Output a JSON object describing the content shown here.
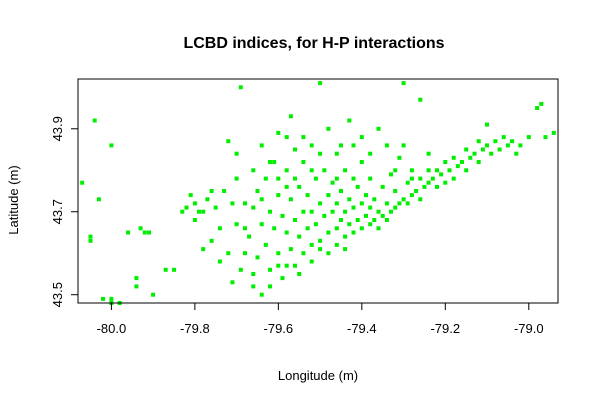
{
  "chart_data": {
    "type": "scatter",
    "title": "LCBD indices, for H-P interactions",
    "xlabel": "Longitude (m)",
    "ylabel": "Latitude (m)",
    "xlim": [
      -80.08,
      -78.93
    ],
    "ylim": [
      43.48,
      44.02
    ],
    "xticks": [
      -80.0,
      -79.8,
      -79.6,
      -79.4,
      -79.2,
      -79.0
    ],
    "xtick_labels": [
      "-80.0",
      "-79.8",
      "-79.6",
      "-79.4",
      "-79.2",
      "-79.0"
    ],
    "yticks": [
      43.5,
      43.7,
      43.9
    ],
    "ytick_labels": [
      "43.5",
      "43.7",
      "43.9"
    ],
    "grid": false,
    "legend": "none",
    "color": "#00ee00",
    "series": [
      {
        "values": [
          [
            -80.07,
            43.77
          ],
          [
            -80.05,
            43.64
          ],
          [
            -80.05,
            43.63
          ],
          [
            -80.04,
            43.92
          ],
          [
            -80.03,
            43.73
          ],
          [
            -80.02,
            43.49
          ],
          [
            -80.0,
            43.49
          ],
          [
            -80.0,
            43.48
          ],
          [
            -79.98,
            43.48
          ],
          [
            -80.0,
            43.86
          ],
          [
            -79.96,
            43.65
          ],
          [
            -79.94,
            43.54
          ],
          [
            -79.94,
            43.52
          ],
          [
            -79.93,
            43.66
          ],
          [
            -79.92,
            43.65
          ],
          [
            -79.91,
            43.65
          ],
          [
            -79.9,
            43.5
          ],
          [
            -79.87,
            43.56
          ],
          [
            -79.85,
            43.56
          ],
          [
            -79.83,
            43.7
          ],
          [
            -79.82,
            43.71
          ],
          [
            -79.81,
            43.74
          ],
          [
            -79.8,
            43.68
          ],
          [
            -79.8,
            43.72
          ],
          [
            -79.79,
            43.7
          ],
          [
            -79.78,
            43.61
          ],
          [
            -79.78,
            43.7
          ],
          [
            -79.77,
            43.73
          ],
          [
            -79.76,
            43.63
          ],
          [
            -79.76,
            43.75
          ],
          [
            -79.75,
            43.71
          ],
          [
            -79.74,
            43.58
          ],
          [
            -79.74,
            43.66
          ],
          [
            -79.73,
            43.75
          ],
          [
            -79.72,
            43.87
          ],
          [
            -79.71,
            43.72
          ],
          [
            -79.71,
            43.53
          ],
          [
            -79.7,
            43.67
          ],
          [
            -79.7,
            43.84
          ],
          [
            -79.69,
            43.56
          ],
          [
            -79.69,
            44.0
          ],
          [
            -79.68,
            43.6
          ],
          [
            -79.68,
            43.72
          ],
          [
            -79.67,
            43.64
          ],
          [
            -79.66,
            43.55
          ],
          [
            -79.66,
            43.71
          ],
          [
            -79.65,
            43.59
          ],
          [
            -79.65,
            43.75
          ],
          [
            -79.64,
            43.5
          ],
          [
            -79.64,
            43.67
          ],
          [
            -79.63,
            43.62
          ],
          [
            -79.63,
            43.78
          ],
          [
            -79.62,
            43.56
          ],
          [
            -79.62,
            43.7
          ],
          [
            -79.61,
            43.66
          ],
          [
            -79.61,
            43.82
          ],
          [
            -79.6,
            43.6
          ],
          [
            -79.6,
            43.74
          ],
          [
            -79.6,
            43.89
          ],
          [
            -79.59,
            43.54
          ],
          [
            -79.59,
            43.69
          ],
          [
            -79.58,
            43.65
          ],
          [
            -79.58,
            43.8
          ],
          [
            -79.57,
            43.61
          ],
          [
            -79.57,
            43.73
          ],
          [
            -79.57,
            43.93
          ],
          [
            -79.56,
            43.57
          ],
          [
            -79.56,
            43.68
          ],
          [
            -79.56,
            43.85
          ],
          [
            -79.55,
            43.64
          ],
          [
            -79.55,
            43.76
          ],
          [
            -79.54,
            43.6
          ],
          [
            -79.54,
            43.7
          ],
          [
            -79.54,
            43.82
          ],
          [
            -79.53,
            43.66
          ],
          [
            -79.53,
            43.74
          ],
          [
            -79.52,
            43.62
          ],
          [
            -79.52,
            43.7
          ],
          [
            -79.52,
            43.86
          ],
          [
            -79.51,
            43.67
          ],
          [
            -79.51,
            43.78
          ],
          [
            -79.5,
            43.63
          ],
          [
            -79.5,
            43.72
          ],
          [
            -79.5,
            44.01
          ],
          [
            -79.49,
            43.69
          ],
          [
            -79.49,
            43.8
          ],
          [
            -79.48,
            43.65
          ],
          [
            -79.48,
            43.74
          ],
          [
            -79.48,
            43.9
          ],
          [
            -79.47,
            43.7
          ],
          [
            -79.47,
            43.77
          ],
          [
            -79.46,
            43.66
          ],
          [
            -79.46,
            43.72
          ],
          [
            -79.46,
            43.84
          ],
          [
            -79.45,
            43.68
          ],
          [
            -79.45,
            43.75
          ],
          [
            -79.44,
            43.64
          ],
          [
            -79.44,
            43.7
          ],
          [
            -79.44,
            43.8
          ],
          [
            -79.43,
            43.67
          ],
          [
            -79.43,
            43.73
          ],
          [
            -79.42,
            43.65
          ],
          [
            -79.42,
            43.71
          ],
          [
            -79.42,
            43.86
          ],
          [
            -79.41,
            43.68
          ],
          [
            -79.41,
            43.76
          ],
          [
            -79.4,
            43.66
          ],
          [
            -79.4,
            43.72
          ],
          [
            -79.4,
            43.82
          ],
          [
            -79.39,
            43.69
          ],
          [
            -79.39,
            43.74
          ],
          [
            -79.38,
            43.67
          ],
          [
            -79.38,
            43.71
          ],
          [
            -79.38,
            43.78
          ],
          [
            -79.37,
            43.68
          ],
          [
            -79.37,
            43.73
          ],
          [
            -79.36,
            43.66
          ],
          [
            -79.36,
            43.7
          ],
          [
            -79.36,
            43.9
          ],
          [
            -79.35,
            43.69
          ],
          [
            -79.35,
            43.76
          ],
          [
            -79.34,
            43.68
          ],
          [
            -79.34,
            43.72
          ],
          [
            -79.33,
            43.7
          ],
          [
            -79.33,
            43.79
          ],
          [
            -79.32,
            43.71
          ],
          [
            -79.32,
            43.75
          ],
          [
            -79.31,
            43.72
          ],
          [
            -79.31,
            43.83
          ],
          [
            -79.3,
            43.73
          ],
          [
            -79.3,
            44.01
          ],
          [
            -79.29,
            43.72
          ],
          [
            -79.29,
            43.77
          ],
          [
            -79.28,
            43.74
          ],
          [
            -79.28,
            43.8
          ],
          [
            -79.27,
            43.75
          ],
          [
            -79.26,
            43.73
          ],
          [
            -79.26,
            43.78
          ],
          [
            -79.25,
            43.76
          ],
          [
            -79.24,
            43.77
          ],
          [
            -79.24,
            43.84
          ],
          [
            -79.23,
            43.78
          ],
          [
            -79.22,
            43.76
          ],
          [
            -79.22,
            43.8
          ],
          [
            -79.21,
            43.79
          ],
          [
            -79.2,
            43.77
          ],
          [
            -79.2,
            43.82
          ],
          [
            -79.19,
            43.8
          ],
          [
            -79.18,
            43.78
          ],
          [
            -79.18,
            43.83
          ],
          [
            -79.17,
            43.81
          ],
          [
            -79.16,
            43.82
          ],
          [
            -79.15,
            43.8
          ],
          [
            -79.15,
            43.85
          ],
          [
            -79.14,
            43.83
          ],
          [
            -79.13,
            43.84
          ],
          [
            -79.12,
            43.82
          ],
          [
            -79.12,
            43.87
          ],
          [
            -79.11,
            43.85
          ],
          [
            -79.1,
            43.86
          ],
          [
            -79.1,
            43.91
          ],
          [
            -79.09,
            43.84
          ],
          [
            -79.08,
            43.87
          ],
          [
            -79.07,
            43.85
          ],
          [
            -79.06,
            43.88
          ],
          [
            -79.05,
            43.86
          ],
          [
            -79.04,
            43.87
          ],
          [
            -79.03,
            43.84
          ],
          [
            -79.02,
            43.86
          ],
          [
            -79.0,
            43.88
          ],
          [
            -78.98,
            43.95
          ],
          [
            -78.97,
            43.96
          ],
          [
            -78.96,
            43.88
          ],
          [
            -78.94,
            43.89
          ],
          [
            -79.26,
            43.97
          ],
          [
            -79.43,
            43.92
          ],
          [
            -79.58,
            43.57
          ],
          [
            -79.6,
            43.57
          ],
          [
            -79.52,
            43.58
          ],
          [
            -79.48,
            43.6
          ],
          [
            -79.46,
            43.62
          ],
          [
            -79.44,
            43.61
          ],
          [
            -79.5,
            43.61
          ],
          [
            -79.62,
            43.52
          ],
          [
            -79.55,
            43.55
          ],
          [
            -79.66,
            43.52
          ],
          [
            -79.72,
            43.6
          ],
          [
            -79.68,
            43.66
          ],
          [
            -79.64,
            43.73
          ],
          [
            -79.58,
            43.76
          ],
          [
            -79.54,
            43.88
          ],
          [
            -79.5,
            43.84
          ],
          [
            -79.45,
            43.86
          ],
          [
            -79.4,
            43.88
          ],
          [
            -79.34,
            43.86
          ],
          [
            -79.3,
            43.86
          ],
          [
            -79.38,
            43.84
          ],
          [
            -79.32,
            43.8
          ],
          [
            -79.28,
            43.78
          ],
          [
            -79.24,
            43.8
          ],
          [
            -79.42,
            43.78
          ],
          [
            -79.46,
            43.78
          ],
          [
            -79.52,
            43.8
          ],
          [
            -79.56,
            43.78
          ],
          [
            -79.6,
            43.78
          ],
          [
            -79.62,
            43.82
          ],
          [
            -79.66,
            43.8
          ],
          [
            -79.7,
            43.78
          ],
          [
            -79.64,
            43.86
          ],
          [
            -79.58,
            43.88
          ]
        ]
      }
    ]
  }
}
